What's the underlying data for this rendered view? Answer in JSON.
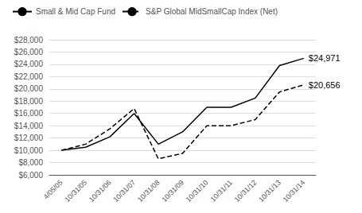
{
  "chart_data": {
    "type": "line",
    "categories": [
      "4/05/05",
      "10/31/05",
      "10/31/06",
      "10/31/07",
      "10/31/08",
      "10/31/09",
      "10/31/10",
      "10/31/11",
      "10/31/12",
      "10/31/13",
      "10/31/14"
    ],
    "series": [
      {
        "name": "Small & Mid Cap Fund",
        "color": "#000000",
        "line_style": "solid",
        "values": [
          10000,
          10500,
          12200,
          16000,
          11000,
          13000,
          17000,
          17000,
          18500,
          23800,
          24971
        ]
      },
      {
        "name": "S&P Global MidSmallCap Index (Net)",
        "color": "#000000",
        "line_style": "dashed",
        "values": [
          10000,
          11000,
          13500,
          16800,
          8600,
          9500,
          14000,
          14000,
          15000,
          19500,
          20656
        ]
      }
    ],
    "ylim": [
      6000,
      28000
    ],
    "yticks": [
      {
        "value": 6000,
        "label": "$6,000"
      },
      {
        "value": 8000,
        "label": "$8,000"
      },
      {
        "value": 10000,
        "label": "$10,000"
      },
      {
        "value": 12000,
        "label": "$12,000"
      },
      {
        "value": 14000,
        "label": "$14,000"
      },
      {
        "value": 16000,
        "label": "$16,000"
      },
      {
        "value": 18000,
        "label": "$18,000"
      },
      {
        "value": 20000,
        "label": "$20,000"
      },
      {
        "value": 22000,
        "label": "$22,000"
      },
      {
        "value": 24000,
        "label": "$24,000"
      },
      {
        "value": 26000,
        "label": "$26,000"
      },
      {
        "value": 28000,
        "label": "$28,000"
      }
    ],
    "grid": true,
    "legend": "upper left",
    "annotations": [
      {
        "text": "$24,971",
        "x": "10/31/14",
        "y": 24971
      },
      {
        "text": "$20,656",
        "x": "10/31/14",
        "y": 20656
      }
    ]
  }
}
